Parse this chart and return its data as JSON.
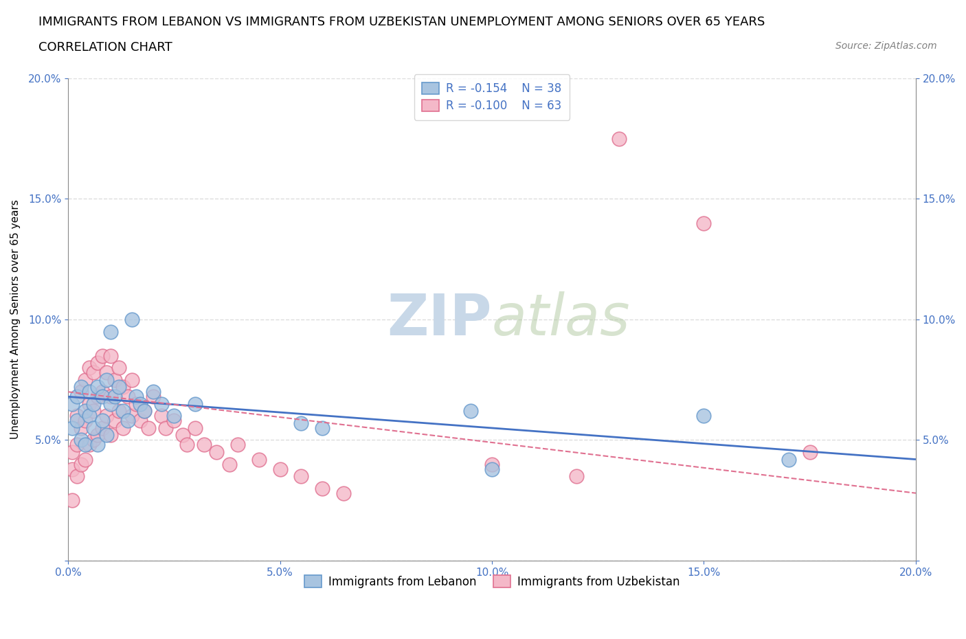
{
  "title_line1": "IMMIGRANTS FROM LEBANON VS IMMIGRANTS FROM UZBEKISTAN UNEMPLOYMENT AMONG SENIORS OVER 65 YEARS",
  "title_line2": "CORRELATION CHART",
  "source": "Source: ZipAtlas.com",
  "ylabel": "Unemployment Among Seniors over 65 years",
  "xmin": 0.0,
  "xmax": 0.2,
  "ymin": 0.0,
  "ymax": 0.2,
  "xticks": [
    0.0,
    0.05,
    0.1,
    0.15,
    0.2
  ],
  "yticks": [
    0.0,
    0.05,
    0.1,
    0.15,
    0.2
  ],
  "xtick_labels": [
    "0.0%",
    "5.0%",
    "10.0%",
    "15.0%",
    "20.0%"
  ],
  "ytick_labels_left": [
    "",
    "5.0%",
    "10.0%",
    "15.0%",
    "20.0%"
  ],
  "ytick_labels_right": [
    "",
    "5.0%",
    "10.0%",
    "15.0%",
    "20.0%"
  ],
  "lebanon_color": "#a8c4e0",
  "lebanon_edge_color": "#6699cc",
  "uzbekistan_color": "#f4b8c8",
  "uzbekistan_edge_color": "#e07090",
  "trend_lebanon_color": "#4472c4",
  "trend_uzbekistan_color": "#e07090",
  "legend_R_lebanon": "-0.154",
  "legend_N_lebanon": "38",
  "legend_R_uzbekistan": "-0.100",
  "legend_N_uzbekistan": "63",
  "watermark": "ZIPatlas",
  "watermark_color": "#c8d8e8",
  "legend_label_lebanon": "Immigrants from Lebanon",
  "legend_label_uzbekistan": "Immigrants from Uzbekistan",
  "lebanon_x": [
    0.001,
    0.001,
    0.002,
    0.002,
    0.003,
    0.003,
    0.004,
    0.004,
    0.005,
    0.005,
    0.006,
    0.006,
    0.007,
    0.007,
    0.008,
    0.008,
    0.009,
    0.009,
    0.01,
    0.01,
    0.011,
    0.012,
    0.013,
    0.014,
    0.015,
    0.016,
    0.017,
    0.018,
    0.02,
    0.022,
    0.025,
    0.03,
    0.055,
    0.06,
    0.095,
    0.1,
    0.15,
    0.17
  ],
  "lebanon_y": [
    0.065,
    0.055,
    0.068,
    0.058,
    0.072,
    0.05,
    0.062,
    0.048,
    0.07,
    0.06,
    0.065,
    0.055,
    0.072,
    0.048,
    0.068,
    0.058,
    0.075,
    0.052,
    0.095,
    0.065,
    0.068,
    0.072,
    0.062,
    0.058,
    0.1,
    0.068,
    0.065,
    0.062,
    0.07,
    0.065,
    0.06,
    0.065,
    0.057,
    0.055,
    0.062,
    0.038,
    0.06,
    0.042
  ],
  "uzbekistan_x": [
    0.001,
    0.001,
    0.001,
    0.002,
    0.002,
    0.002,
    0.003,
    0.003,
    0.003,
    0.004,
    0.004,
    0.004,
    0.005,
    0.005,
    0.005,
    0.006,
    0.006,
    0.006,
    0.007,
    0.007,
    0.007,
    0.008,
    0.008,
    0.008,
    0.009,
    0.009,
    0.01,
    0.01,
    0.01,
    0.011,
    0.011,
    0.012,
    0.012,
    0.013,
    0.013,
    0.014,
    0.015,
    0.015,
    0.016,
    0.017,
    0.018,
    0.019,
    0.02,
    0.022,
    0.023,
    0.025,
    0.027,
    0.028,
    0.03,
    0.032,
    0.035,
    0.038,
    0.04,
    0.045,
    0.05,
    0.055,
    0.06,
    0.065,
    0.1,
    0.12,
    0.13,
    0.15,
    0.175
  ],
  "uzbekistan_y": [
    0.045,
    0.038,
    0.025,
    0.06,
    0.048,
    0.035,
    0.07,
    0.055,
    0.04,
    0.075,
    0.058,
    0.042,
    0.08,
    0.065,
    0.048,
    0.078,
    0.062,
    0.05,
    0.082,
    0.068,
    0.052,
    0.085,
    0.07,
    0.055,
    0.078,
    0.06,
    0.085,
    0.068,
    0.052,
    0.075,
    0.058,
    0.08,
    0.062,
    0.072,
    0.055,
    0.068,
    0.075,
    0.06,
    0.065,
    0.058,
    0.062,
    0.055,
    0.068,
    0.06,
    0.055,
    0.058,
    0.052,
    0.048,
    0.055,
    0.048,
    0.045,
    0.04,
    0.048,
    0.042,
    0.038,
    0.035,
    0.03,
    0.028,
    0.04,
    0.035,
    0.175,
    0.14,
    0.045
  ],
  "grid_color": "#dddddd",
  "axis_color": "#888888",
  "tick_color": "#4472c4",
  "title_fontsize": 13,
  "subtitle_fontsize": 13,
  "axis_label_fontsize": 11,
  "tick_fontsize": 11,
  "legend_fontsize": 12,
  "source_fontsize": 10,
  "trend_lebanon_start_y": 0.068,
  "trend_lebanon_end_y": 0.042,
  "trend_uzbekistan_start_y": 0.07,
  "trend_uzbekistan_end_y": 0.028
}
